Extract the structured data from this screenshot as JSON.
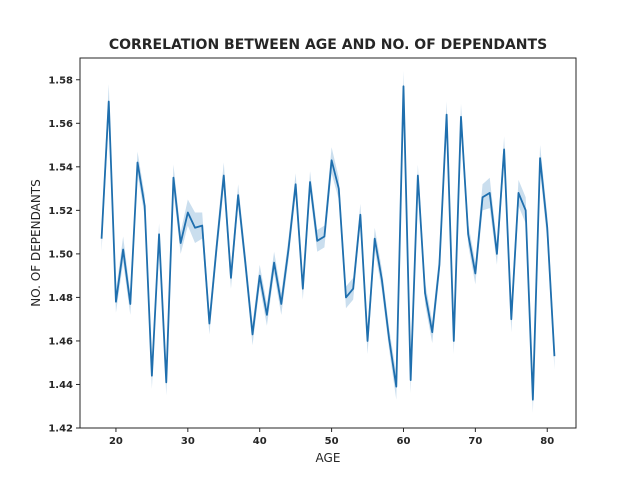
{
  "chart_data": {
    "type": "line",
    "title": "CORRELATION BETWEEN AGE AND NO. OF DEPENDANTS",
    "xlabel": "AGE",
    "ylabel": "NO. OF DEPENDANTS",
    "xlim": [
      15,
      84
    ],
    "ylim": [
      1.42,
      1.59
    ],
    "xticks": [
      20,
      30,
      40,
      50,
      60,
      70,
      80
    ],
    "yticks": [
      1.42,
      1.44,
      1.46,
      1.48,
      1.5,
      1.52,
      1.54,
      1.56,
      1.58
    ],
    "ytick_labels": [
      "1.42",
      "1.44",
      "1.46",
      "1.48",
      "1.50",
      "1.52",
      "1.54",
      "1.56",
      "1.58"
    ],
    "grid": false,
    "line_color": "#1f6fae",
    "band_color": "#9fc3e0",
    "series": [
      {
        "x": [
          18,
          19,
          20,
          21,
          22,
          23,
          24,
          25,
          26,
          27,
          28,
          29,
          30,
          31,
          32,
          33,
          34,
          35,
          36,
          37,
          38,
          39,
          40,
          41,
          42,
          43,
          44,
          45,
          46,
          47,
          48,
          49,
          50,
          51,
          52,
          53,
          54,
          55,
          56,
          57,
          58,
          59,
          60,
          61,
          62,
          63,
          64,
          65,
          66,
          67,
          68,
          69,
          70,
          71,
          72,
          73,
          74,
          75,
          76,
          77,
          78,
          79,
          80,
          81
        ],
        "y": [
          1.507,
          1.57,
          1.478,
          1.502,
          1.477,
          1.542,
          1.522,
          1.444,
          1.509,
          1.441,
          1.535,
          1.505,
          1.519,
          1.512,
          1.513,
          1.468,
          1.503,
          1.536,
          1.489,
          1.527,
          1.496,
          1.463,
          1.49,
          1.472,
          1.496,
          1.477,
          1.502,
          1.532,
          1.484,
          1.533,
          1.506,
          1.508,
          1.543,
          1.53,
          1.48,
          1.484,
          1.518,
          1.46,
          1.507,
          1.488,
          1.461,
          1.439,
          1.577,
          1.442,
          1.536,
          1.482,
          1.464,
          1.495,
          1.564,
          1.46,
          1.563,
          1.509,
          1.491,
          1.526,
          1.528,
          1.5,
          1.548,
          1.47,
          1.528,
          1.52,
          1.433,
          1.544,
          1.512,
          1.453
        ],
        "ci_half_width": [
          0.006,
          0.008,
          0.005,
          0.006,
          0.005,
          0.005,
          0.005,
          0.006,
          0.005,
          0.006,
          0.006,
          0.005,
          0.006,
          0.007,
          0.006,
          0.005,
          0.005,
          0.006,
          0.005,
          0.005,
          0.005,
          0.005,
          0.005,
          0.005,
          0.005,
          0.005,
          0.005,
          0.005,
          0.005,
          0.005,
          0.005,
          0.005,
          0.006,
          0.005,
          0.005,
          0.005,
          0.005,
          0.006,
          0.005,
          0.005,
          0.005,
          0.006,
          0.007,
          0.006,
          0.005,
          0.005,
          0.005,
          0.005,
          0.006,
          0.006,
          0.006,
          0.005,
          0.005,
          0.006,
          0.007,
          0.005,
          0.006,
          0.006,
          0.006,
          0.006,
          0.006,
          0.006,
          0.006,
          0.006
        ]
      }
    ]
  }
}
